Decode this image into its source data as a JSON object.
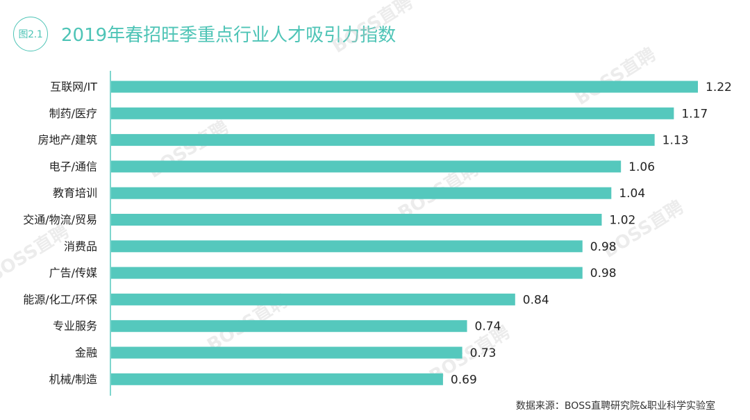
{
  "figure": {
    "label": "图2.1",
    "title": "2019年春招旺季重点行业人才吸引力指数",
    "source": "数据来源：BOSS直聘研究院&职业科学实验室",
    "watermark": "BOSS直聘"
  },
  "colors": {
    "bar": "#55c8bd",
    "axis": "#55c8bd",
    "accent": "#4ec4b6"
  },
  "chart_data": {
    "type": "bar",
    "orientation": "horizontal",
    "title": "2019年春招旺季重点行业人才吸引力指数",
    "categories": [
      "互联网/IT",
      "制药/医疗",
      "房地产/建筑",
      "电子/通信",
      "教育培训",
      "交通/物流/贸易",
      "消费品",
      "广告/传媒",
      "能源/化工/环保",
      "专业服务",
      "金融",
      "机械/制造"
    ],
    "values": [
      1.22,
      1.17,
      1.13,
      1.06,
      1.04,
      1.02,
      0.98,
      0.98,
      0.84,
      0.74,
      0.73,
      0.69
    ],
    "value_labels": [
      "1.22",
      "1.17",
      "1.13",
      "1.06",
      "1.04",
      "1.02",
      "0.98",
      "0.98",
      "0.84",
      "0.74",
      "0.73",
      "0.69"
    ],
    "xlim": [
      0,
      1.22
    ],
    "grid": false,
    "legend": "none"
  }
}
